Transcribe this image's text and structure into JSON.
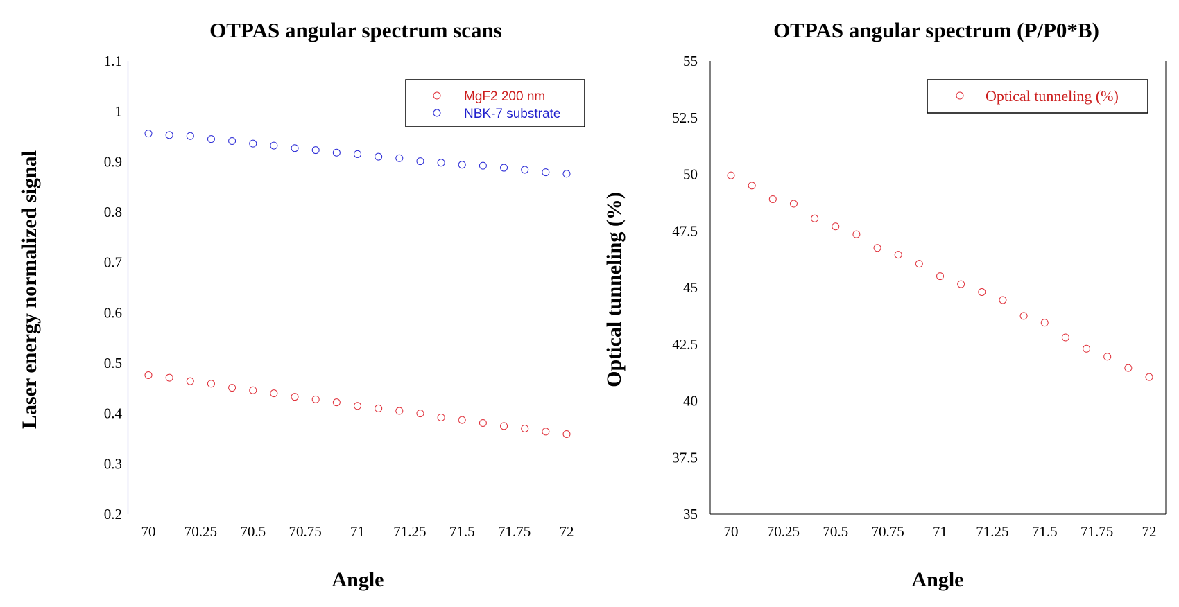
{
  "chart_data": [
    {
      "type": "scatter",
      "title": "OTPAS angular spectrum scans",
      "xlabel": "Angle",
      "ylabel": "Laser energy normalized signal",
      "xlim": [
        70,
        72
      ],
      "ylim": [
        0.2,
        1.1
      ],
      "x_ticks": [
        "70",
        "70.25",
        "70.5",
        "70.75",
        "71",
        "71.25",
        "71.5",
        "71.75",
        "72"
      ],
      "y_ticks": [
        "0.2",
        "0.3",
        "0.4",
        "0.5",
        "0.6",
        "0.7",
        "0.8",
        "0.9",
        "1",
        "1.1"
      ],
      "legend_position": "top-right",
      "series": [
        {
          "name": "MgF2 200 nm",
          "color": "#e0303a",
          "x": [
            70,
            70.1,
            70.2,
            70.3,
            70.4,
            70.5,
            70.6,
            70.7,
            70.8,
            70.9,
            71,
            71.1,
            71.2,
            71.3,
            71.4,
            71.5,
            71.6,
            71.7,
            71.8,
            71.9,
            72
          ],
          "y": [
            0.476,
            0.471,
            0.464,
            0.459,
            0.451,
            0.446,
            0.44,
            0.433,
            0.428,
            0.422,
            0.415,
            0.41,
            0.405,
            0.4,
            0.392,
            0.387,
            0.381,
            0.375,
            0.37,
            0.364,
            0.359
          ]
        },
        {
          "name": "NBK-7 substrate",
          "color": "#2a2ad6",
          "x": [
            70,
            70.1,
            70.2,
            70.3,
            70.4,
            70.5,
            70.6,
            70.7,
            70.8,
            70.9,
            71,
            71.1,
            71.2,
            71.3,
            71.4,
            71.5,
            71.6,
            71.7,
            71.8,
            71.9,
            72
          ],
          "y": [
            0.956,
            0.953,
            0.951,
            0.945,
            0.941,
            0.936,
            0.932,
            0.927,
            0.923,
            0.918,
            0.915,
            0.91,
            0.907,
            0.901,
            0.898,
            0.894,
            0.892,
            0.888,
            0.884,
            0.879,
            0.876
          ]
        }
      ]
    },
    {
      "type": "scatter",
      "title": "OTPAS angular spectrum (P/P0*B)",
      "xlabel": "Angle",
      "ylabel": "Optical tunneling (%)",
      "xlim": [
        70,
        72
      ],
      "ylim": [
        35,
        55
      ],
      "x_ticks": [
        "70",
        "70.25",
        "70.5",
        "70.75",
        "71",
        "71.25",
        "71.5",
        "71.75",
        "72"
      ],
      "y_ticks": [
        "35",
        "37.5",
        "40",
        "42.5",
        "45",
        "47.5",
        "50",
        "52.5",
        "55"
      ],
      "legend_position": "top-right",
      "series": [
        {
          "name": "Optical tunneling (%)",
          "color": "#e0303a",
          "x": [
            70,
            70.1,
            70.2,
            70.3,
            70.4,
            70.5,
            70.6,
            70.7,
            70.8,
            70.9,
            71,
            71.1,
            71.2,
            71.3,
            71.4,
            71.5,
            71.6,
            71.7,
            71.8,
            71.9,
            72
          ],
          "y": [
            49.95,
            49.5,
            48.9,
            48.7,
            48.05,
            47.7,
            47.35,
            46.75,
            46.45,
            46.05,
            45.5,
            45.15,
            44.8,
            44.45,
            43.75,
            43.45,
            42.8,
            42.3,
            41.95,
            41.45,
            41.05
          ]
        }
      ]
    }
  ]
}
